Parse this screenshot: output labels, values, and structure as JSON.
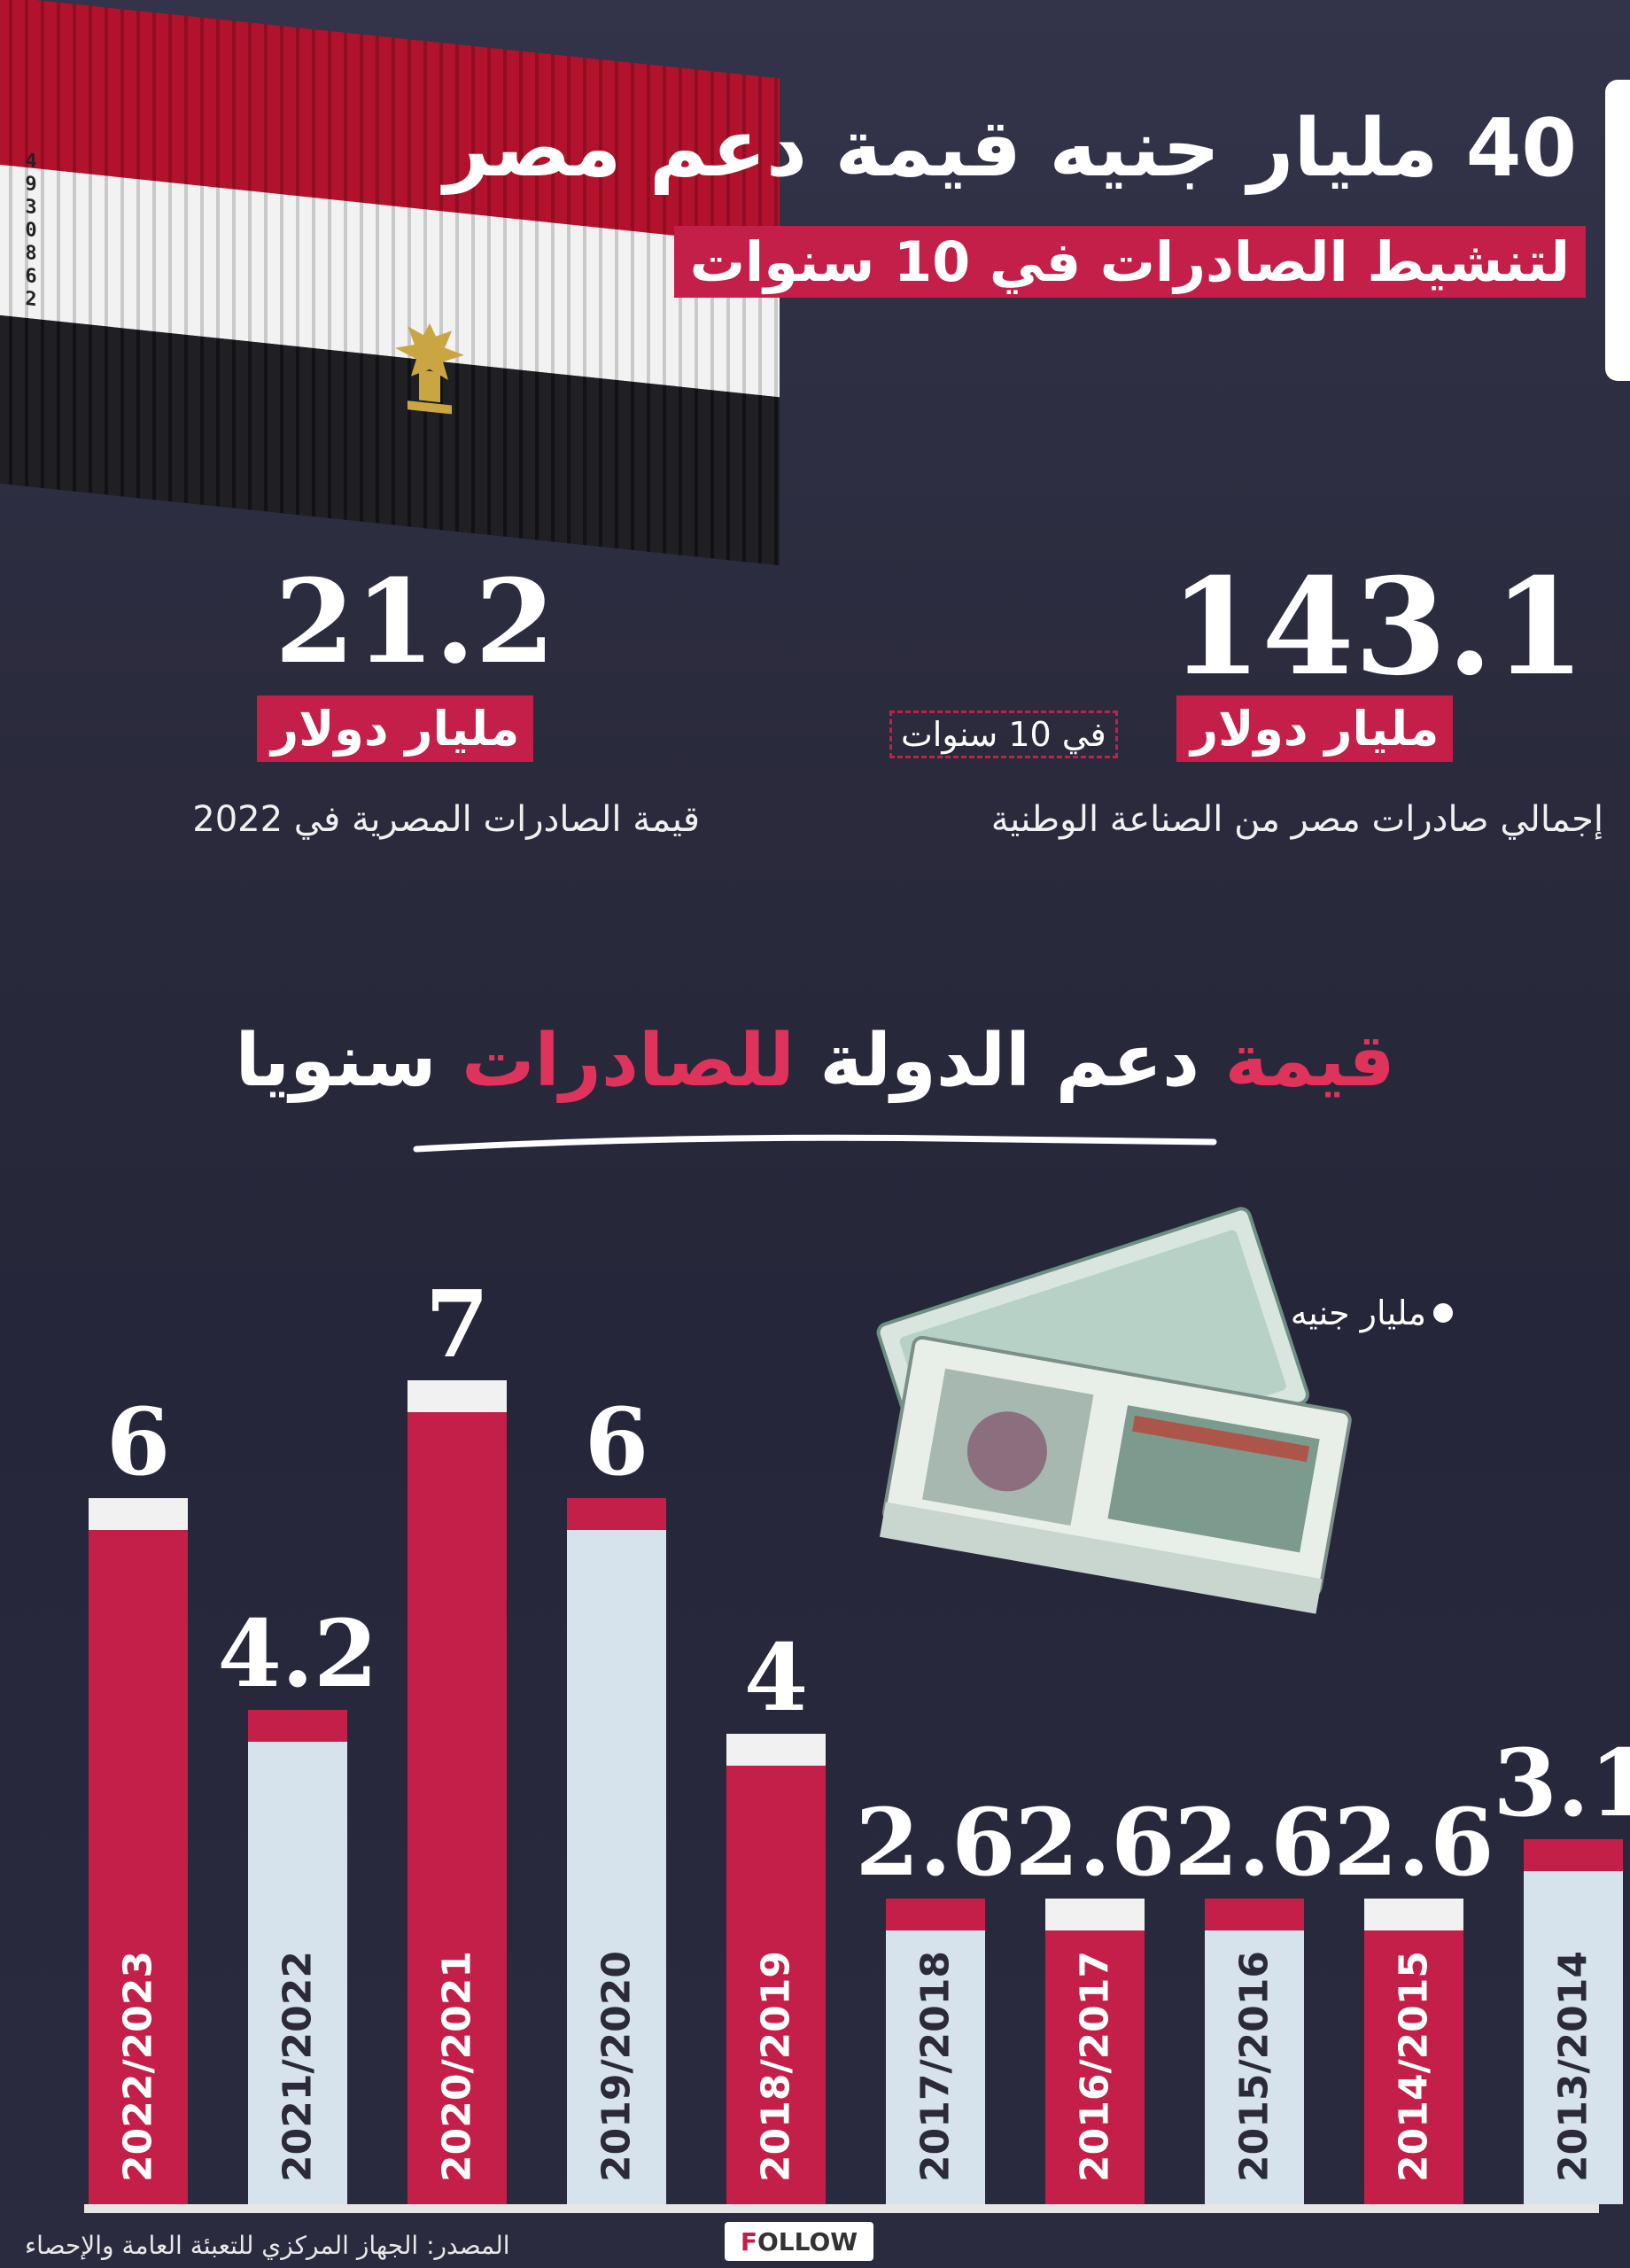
{
  "header": {
    "title": "40 مليار جنيه قيمة دعم مصر",
    "subtitle": "لتنشيط الصادرات في 10 سنوات"
  },
  "decor": {
    "container_code": [
      "4",
      "9",
      "3",
      "0",
      "8",
      "6",
      "2"
    ]
  },
  "stats": {
    "total": {
      "value": "143.1",
      "unit": "مليار دولار",
      "note": "في 10 سنوات",
      "description": "إجمالي صادرات مصر من الصناعة الوطنية"
    },
    "year2022": {
      "value": "21.2",
      "unit": "مليار دولار",
      "description": "قيمة الصادرات المصرية في 2022"
    }
  },
  "chart_heading": {
    "part1": "قيمة",
    "part2": "دعم الدولة",
    "part3": "للصادرات",
    "part4": "سنويا"
  },
  "chart_data": {
    "type": "bar",
    "title": "قيمة دعم الدولة للصادرات سنويا",
    "unit": "مليار جنيه",
    "categories": [
      "2022/2023",
      "2021/2022",
      "2020/2021",
      "2019/2020",
      "2018/2019",
      "2017/2018",
      "2016/2017",
      "2015/2016",
      "2014/2015",
      "2013/2014"
    ],
    "values": [
      6,
      4.2,
      7,
      6,
      4,
      2.6,
      2.6,
      2.6,
      2.6,
      3.1
    ],
    "value_labels": [
      "6",
      "4.2",
      "7",
      "6",
      "4",
      "2.6",
      "2.6",
      "2.6",
      "2.6",
      "3.1"
    ],
    "ylim": [
      0,
      7
    ],
    "colors": {
      "accent": "#c41f48",
      "light": "#d6e2ec"
    },
    "bar_styles": [
      "accent",
      "light",
      "accent",
      "light",
      "accent",
      "light",
      "accent",
      "light",
      "accent",
      "light"
    ]
  },
  "legend": {
    "label": "مليار جنيه"
  },
  "footer": {
    "source": "المصدر: الجهاز المركزي للتعبئة العامة والإحصاء",
    "logo_f": "F",
    "logo_rest": "OLLOW"
  }
}
